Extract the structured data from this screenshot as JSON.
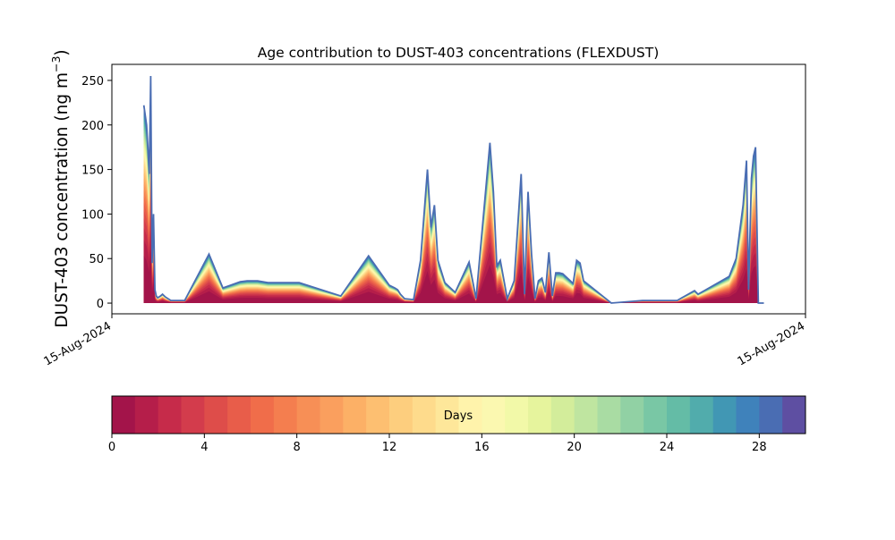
{
  "chart_data": {
    "type": "area",
    "title": "Age contribution to DUST-403 concentrations (FLEXDUST)",
    "ylabel": "DUST-403 concentration (ng m",
    "ylabel_sup": "−3",
    "ylabel_close": ")",
    "ylim": [
      -12,
      268
    ],
    "yticks": [
      0,
      50,
      100,
      150,
      200,
      250
    ],
    "xlim": [
      0,
      100
    ],
    "xtick_labels": [
      "15-Aug-2024",
      "15-Aug-2024"
    ],
    "grid": false,
    "total_series": {
      "x": [
        4.6,
        5.0,
        5.4,
        5.6,
        5.8,
        6.0,
        6.2,
        6.4,
        6.6,
        6.8,
        7.0,
        7.3,
        7.7,
        8.5,
        10.5,
        14.0,
        16.0,
        18.5,
        19.5,
        21.0,
        22.5,
        27.0,
        33.0,
        37.0,
        40.0,
        40.8,
        41.2,
        41.6,
        42.2,
        43.5,
        44.5,
        45.5,
        46.0,
        46.5,
        47.0,
        48.0,
        49.5,
        51.5,
        52.5,
        54.5,
        55.0,
        55.5,
        56.0,
        57.0,
        58.0,
        59.0,
        59.5,
        60.0,
        60.5,
        61.0,
        61.5,
        62.0,
        62.5,
        63.0,
        63.5,
        64.0,
        64.5,
        65.0,
        66.5,
        67.0,
        67.5,
        68.0,
        72.0,
        76.5,
        81.5,
        84.0,
        84.5,
        89.0,
        90.0,
        91.0,
        91.5,
        91.8,
        92.2,
        92.5,
        92.8,
        93.2,
        93.6,
        94.0,
        94.5,
        95.0
      ],
      "values": [
        222,
        200,
        145,
        255,
        45,
        100,
        15,
        8,
        6,
        7,
        8,
        10,
        7,
        3,
        3,
        55,
        17,
        24,
        25,
        25,
        23,
        23,
        8,
        53,
        20,
        17,
        15,
        10,
        5,
        4,
        48,
        150,
        85,
        110,
        48,
        23,
        12,
        46,
        5,
        180,
        125,
        42,
        48,
        5,
        25,
        145,
        10,
        125,
        55,
        5,
        25,
        28,
        12,
        57,
        8,
        34,
        34,
        33,
        22,
        48,
        45,
        25,
        0,
        3,
        3,
        14,
        10,
        30,
        50,
        110,
        160,
        15,
        140,
        165,
        175,
        0,
        0,
        0,
        0,
        0
      ],
      "cutoff_x": 94.0
    },
    "colorbar": {
      "label": "Days",
      "min": 0,
      "max": 30,
      "levels": 30,
      "ticks": [
        0,
        4,
        8,
        12,
        16,
        20,
        24,
        28
      ],
      "colors": [
        "#a3144a",
        "#b51e4a",
        "#c62b4a",
        "#d33c4c",
        "#de4d4a",
        "#e85d4a",
        "#f06d4a",
        "#f47e4f",
        "#f78f56",
        "#fa9f5e",
        "#fcb066",
        "#fdbf71",
        "#fdce7e",
        "#fedb8c",
        "#fee79a",
        "#fff3ab",
        "#fbf8b0",
        "#f2f9a8",
        "#e6f49d",
        "#d3ed9b",
        "#bfe5a0",
        "#a9dca3",
        "#91d1a4",
        "#79c7a5",
        "#64bca6",
        "#51acac",
        "#4197b4",
        "#3f82bb",
        "#4a6db3",
        "#5e4fa2"
      ]
    }
  }
}
